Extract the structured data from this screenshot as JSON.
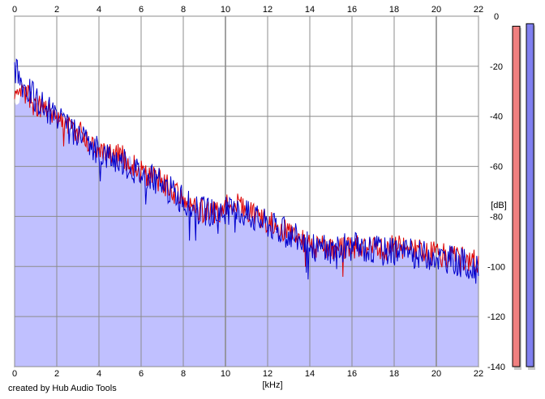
{
  "footer": {
    "credit": "created by Hub Audio Tools"
  },
  "chart_data": {
    "type": "line",
    "title": "",
    "xlabel": "[kHz]",
    "ylabel": "[dB]",
    "xlim": [
      0,
      22
    ],
    "ylim": [
      -140,
      0
    ],
    "x_ticks": [
      0,
      2,
      4,
      6,
      8,
      10,
      12,
      14,
      16,
      18,
      20,
      22
    ],
    "y_ticks": [
      0,
      -20,
      -40,
      -60,
      -80,
      -100,
      -120,
      -140
    ],
    "grid": true,
    "legend": "none",
    "series": [
      {
        "name": "",
        "color": "#dd0000",
        "fill": "#c0c0ff",
        "x": [
          0,
          0.5,
          1,
          1.5,
          2,
          2.5,
          3,
          3.5,
          4,
          4.5,
          5,
          5.5,
          6,
          6.5,
          7,
          7.5,
          8,
          8.5,
          9,
          9.5,
          10,
          10.5,
          11,
          11.5,
          12,
          12.5,
          13,
          13.5,
          14,
          14.5,
          15,
          15.5,
          16,
          16.5,
          17,
          17.5,
          18,
          18.5,
          19,
          19.5,
          20,
          20.5,
          21,
          21.5,
          22
        ],
        "values": [
          -35,
          -30,
          -36,
          -38,
          -40,
          -44,
          -46,
          -50,
          -53,
          -54,
          -56,
          -58,
          -62,
          -64,
          -66,
          -70,
          -74,
          -76,
          -78,
          -78,
          -76,
          -75,
          -77,
          -80,
          -82,
          -84,
          -86,
          -88,
          -92,
          -92,
          -92,
          -93,
          -92,
          -93,
          -93,
          -93,
          -92,
          -93,
          -94,
          -94,
          -95,
          -96,
          -96,
          -97,
          -99
        ]
      },
      {
        "name": "",
        "color": "#0000cc",
        "x": [
          0,
          0.5,
          1,
          1.5,
          2,
          2.5,
          3,
          3.5,
          4,
          4.5,
          5,
          5.5,
          6,
          6.5,
          7,
          7.5,
          8,
          8.5,
          9,
          9.5,
          10,
          10.5,
          11,
          11.5,
          12,
          12.5,
          13,
          13.5,
          14,
          14.5,
          15,
          15.5,
          16,
          16.5,
          17,
          17.5,
          18,
          18.5,
          19,
          19.5,
          20,
          20.5,
          21,
          21.5,
          22
        ],
        "values": [
          -22,
          -28,
          -33,
          -37,
          -41,
          -45,
          -48,
          -52,
          -54,
          -56,
          -58,
          -60,
          -63,
          -65,
          -67,
          -70,
          -74,
          -77,
          -78,
          -79,
          -78,
          -78,
          -79,
          -81,
          -83,
          -85,
          -87,
          -89,
          -92,
          -93,
          -93,
          -93,
          -92,
          -93,
          -93,
          -94,
          -93,
          -94,
          -95,
          -95,
          -96,
          -97,
          -98,
          -99,
          -102
        ]
      }
    ],
    "level_meters": [
      {
        "channel": "left",
        "color": "#f08080",
        "value": -4
      },
      {
        "channel": "right",
        "color": "#8080f0",
        "value": -3
      }
    ]
  }
}
